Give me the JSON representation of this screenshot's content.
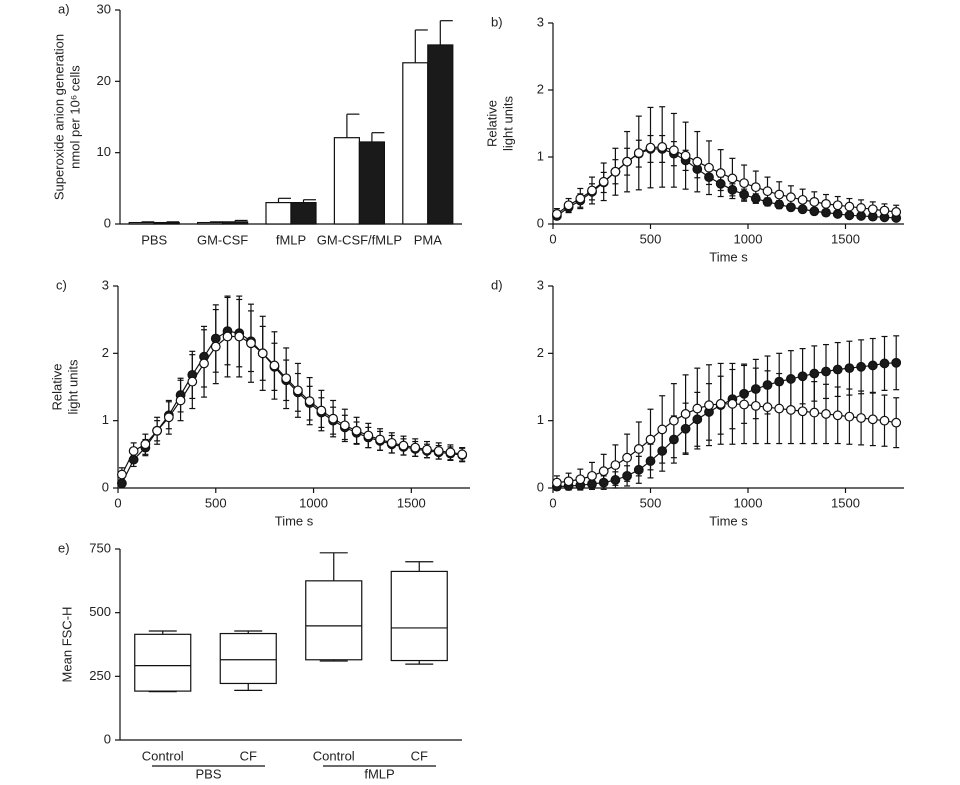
{
  "chart_data": [
    {
      "type": "bar",
      "panel_label": "a)",
      "ylabel": [
        "Superoxide anion generation",
        "nmol per 10⁶ cells"
      ],
      "categories": [
        "PBS",
        "GM-CSF",
        "fMLP",
        "GM-CSF/fMLP",
        "PMA"
      ],
      "series": [
        {
          "color": "#ffffff",
          "values": [
            0.2,
            0.2,
            3.0,
            12.1,
            22.6
          ],
          "errors": [
            0.1,
            0.1,
            0.6,
            3.3,
            4.6
          ]
        },
        {
          "color": "#1a1a1a",
          "values": [
            0.2,
            0.3,
            3.0,
            11.5,
            25.1
          ],
          "errors": [
            0.1,
            0.2,
            0.4,
            1.3,
            3.4
          ]
        }
      ],
      "ylim": [
        0,
        30
      ],
      "yticks": [
        0,
        10,
        20,
        30
      ]
    },
    {
      "type": "line",
      "panel_label": "b)",
      "ylabel": [
        "Relative",
        "light units"
      ],
      "xlabel": "Time s",
      "x": [
        20,
        80,
        140,
        200,
        260,
        320,
        380,
        440,
        500,
        560,
        620,
        680,
        740,
        800,
        860,
        920,
        980,
        1040,
        1100,
        1160,
        1220,
        1280,
        1340,
        1400,
        1460,
        1520,
        1580,
        1640,
        1700,
        1760
      ],
      "series": [
        {
          "color": "#1a1a1a",
          "values": [
            0.12,
            0.25,
            0.35,
            0.48,
            0.62,
            0.78,
            0.93,
            1.05,
            1.12,
            1.12,
            1.05,
            0.95,
            0.82,
            0.7,
            0.6,
            0.51,
            0.44,
            0.38,
            0.33,
            0.29,
            0.25,
            0.22,
            0.19,
            0.17,
            0.15,
            0.13,
            0.12,
            0.11,
            0.1,
            0.09
          ],
          "errors": [
            0.05,
            0.08,
            0.1,
            0.12,
            0.15,
            0.18,
            0.2,
            0.2,
            0.2,
            0.2,
            0.18,
            0.15,
            0.13,
            0.11,
            0.1,
            0.09,
            0.08,
            0.07,
            0.06,
            0.06,
            0.05,
            0.05,
            0.05,
            0.04,
            0.04,
            0.04,
            0.04,
            0.04,
            0.04,
            0.04
          ]
        },
        {
          "color": "#ffffff",
          "values": [
            0.15,
            0.28,
            0.38,
            0.5,
            0.63,
            0.78,
            0.93,
            1.06,
            1.14,
            1.15,
            1.1,
            1.02,
            0.93,
            0.84,
            0.76,
            0.68,
            0.61,
            0.55,
            0.49,
            0.44,
            0.4,
            0.36,
            0.33,
            0.3,
            0.28,
            0.26,
            0.24,
            0.22,
            0.2,
            0.18
          ],
          "errors": [
            0.08,
            0.1,
            0.15,
            0.2,
            0.28,
            0.35,
            0.45,
            0.55,
            0.6,
            0.6,
            0.55,
            0.5,
            0.45,
            0.4,
            0.35,
            0.3,
            0.27,
            0.24,
            0.21,
            0.19,
            0.17,
            0.16,
            0.15,
            0.14,
            0.13,
            0.12,
            0.12,
            0.11,
            0.1,
            0.1
          ]
        }
      ],
      "xlim": [
        0,
        1800
      ],
      "xticks": [
        0,
        500,
        1000,
        1500
      ],
      "ylim": [
        0,
        3
      ],
      "yticks": [
        0,
        1,
        2,
        3
      ]
    },
    {
      "type": "line",
      "panel_label": "c)",
      "ylabel": [
        "Relative",
        "light units"
      ],
      "xlabel": "Time s",
      "x": [
        20,
        80,
        140,
        200,
        260,
        320,
        380,
        440,
        500,
        560,
        620,
        680,
        740,
        800,
        860,
        920,
        980,
        1040,
        1100,
        1160,
        1220,
        1280,
        1340,
        1400,
        1460,
        1520,
        1580,
        1640,
        1700,
        1760
      ],
      "series": [
        {
          "color": "#1a1a1a",
          "values": [
            0.07,
            0.42,
            0.6,
            0.85,
            1.08,
            1.38,
            1.68,
            1.95,
            2.22,
            2.33,
            2.3,
            2.18,
            2.0,
            1.8,
            1.6,
            1.42,
            1.26,
            1.12,
            1.0,
            0.9,
            0.82,
            0.75,
            0.7,
            0.65,
            0.61,
            0.58,
            0.55,
            0.53,
            0.51,
            0.49
          ],
          "errors": [
            0.05,
            0.1,
            0.12,
            0.15,
            0.2,
            0.25,
            0.35,
            0.45,
            0.5,
            0.5,
            0.5,
            0.45,
            0.4,
            0.35,
            0.3,
            0.28,
            0.25,
            0.22,
            0.2,
            0.18,
            0.16,
            0.15,
            0.14,
            0.13,
            0.12,
            0.11,
            0.1,
            0.1,
            0.1,
            0.1
          ]
        },
        {
          "color": "#ffffff",
          "values": [
            0.2,
            0.55,
            0.65,
            0.85,
            1.05,
            1.3,
            1.58,
            1.85,
            2.1,
            2.25,
            2.25,
            2.15,
            2.0,
            1.82,
            1.63,
            1.45,
            1.29,
            1.15,
            1.03,
            0.93,
            0.85,
            0.78,
            0.72,
            0.67,
            0.63,
            0.6,
            0.57,
            0.55,
            0.53,
            0.5
          ],
          "errors": [
            0.1,
            0.12,
            0.15,
            0.2,
            0.25,
            0.3,
            0.4,
            0.5,
            0.55,
            0.6,
            0.6,
            0.58,
            0.55,
            0.5,
            0.45,
            0.4,
            0.35,
            0.3,
            0.27,
            0.24,
            0.2,
            0.18,
            0.16,
            0.15,
            0.14,
            0.13,
            0.12,
            0.12,
            0.11,
            0.1
          ]
        }
      ],
      "xlim": [
        0,
        1800
      ],
      "xticks": [
        0,
        500,
        1000,
        1500
      ],
      "ylim": [
        0,
        3
      ],
      "yticks": [
        0,
        1,
        2,
        3
      ]
    },
    {
      "type": "line",
      "panel_label": "d)",
      "xlabel": "Time s",
      "x": [
        20,
        80,
        140,
        200,
        260,
        320,
        380,
        440,
        500,
        560,
        620,
        680,
        740,
        800,
        860,
        920,
        980,
        1040,
        1100,
        1160,
        1220,
        1280,
        1340,
        1400,
        1460,
        1520,
        1580,
        1640,
        1700,
        1760
      ],
      "series": [
        {
          "color": "#1a1a1a",
          "values": [
            0.02,
            0.03,
            0.04,
            0.06,
            0.08,
            0.12,
            0.18,
            0.27,
            0.4,
            0.55,
            0.72,
            0.88,
            1.02,
            1.13,
            1.23,
            1.32,
            1.4,
            1.47,
            1.53,
            1.58,
            1.62,
            1.66,
            1.7,
            1.73,
            1.76,
            1.78,
            1.8,
            1.82,
            1.85,
            1.86
          ],
          "errors": [
            0.05,
            0.06,
            0.07,
            0.08,
            0.1,
            0.12,
            0.15,
            0.2,
            0.25,
            0.3,
            0.35,
            0.38,
            0.4,
            0.42,
            0.43,
            0.44,
            0.44,
            0.44,
            0.43,
            0.42,
            0.42,
            0.41,
            0.41,
            0.4,
            0.4,
            0.4,
            0.4,
            0.4,
            0.4,
            0.4
          ]
        },
        {
          "color": "#ffffff",
          "values": [
            0.08,
            0.1,
            0.13,
            0.18,
            0.25,
            0.34,
            0.45,
            0.58,
            0.72,
            0.87,
            1.0,
            1.1,
            1.18,
            1.23,
            1.25,
            1.25,
            1.24,
            1.22,
            1.2,
            1.18,
            1.16,
            1.14,
            1.12,
            1.1,
            1.08,
            1.06,
            1.04,
            1.02,
            1.0,
            0.97
          ],
          "errors": [
            0.1,
            0.12,
            0.15,
            0.2,
            0.25,
            0.3,
            0.35,
            0.4,
            0.45,
            0.5,
            0.55,
            0.58,
            0.6,
            0.6,
            0.6,
            0.6,
            0.58,
            0.56,
            0.54,
            0.52,
            0.5,
            0.48,
            0.46,
            0.44,
            0.42,
            0.41,
            0.4,
            0.39,
            0.38,
            0.37
          ]
        }
      ],
      "xlim": [
        0,
        1800
      ],
      "xticks": [
        0,
        500,
        1000,
        1500
      ],
      "ylim": [
        0,
        3
      ],
      "yticks": [
        0,
        1,
        2,
        3
      ]
    },
    {
      "type": "box",
      "panel_label": "e)",
      "ylabel": [
        "Mean FSC-H"
      ],
      "categories": [
        "Control",
        "CF",
        "Control",
        "CF"
      ],
      "groups": [
        "PBS",
        "fMLP"
      ],
      "min": [
        190,
        195,
        310,
        298
      ],
      "q1": [
        192,
        222,
        315,
        312
      ],
      "median": [
        292,
        315,
        448,
        440
      ],
      "q3": [
        415,
        418,
        625,
        662
      ],
      "max": [
        428,
        428,
        735,
        700
      ],
      "ylim": [
        0,
        750
      ],
      "yticks": [
        0,
        250,
        500,
        750
      ]
    }
  ]
}
